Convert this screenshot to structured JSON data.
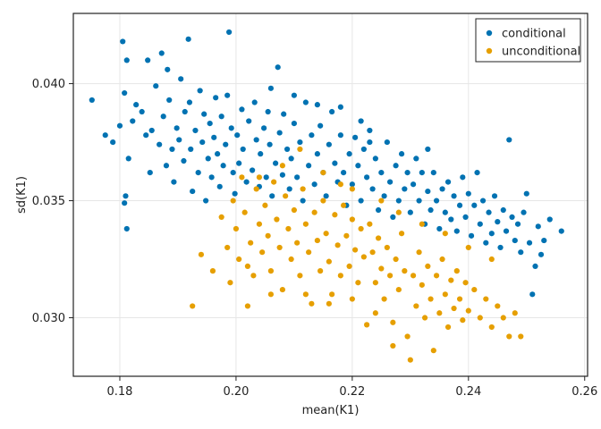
{
  "chart_data": {
    "type": "scatter",
    "xlabel": "mean(K1)",
    "ylabel": "sd(K1)",
    "xlim": [
      0.172,
      0.2605
    ],
    "ylim": [
      0.0275,
      0.043
    ],
    "x_ticks": [
      0.18,
      0.2,
      0.22,
      0.24,
      0.26
    ],
    "x_tick_labels": [
      "0.18",
      "0.20",
      "0.22",
      "0.24",
      "0.26"
    ],
    "y_ticks": [
      0.03,
      0.035,
      0.04
    ],
    "y_tick_labels": [
      "0.030",
      "0.035",
      "0.040"
    ],
    "grid": true,
    "legend_position": "top-right",
    "series": [
      {
        "name": "conditional",
        "color": "#0072b2",
        "points": [
          [
            0.1752,
            0.0393
          ],
          [
            0.1775,
            0.0378
          ],
          [
            0.1788,
            0.0375
          ],
          [
            0.1805,
            0.0418
          ],
          [
            0.1812,
            0.041
          ],
          [
            0.1808,
            0.0396
          ],
          [
            0.18,
            0.0382
          ],
          [
            0.1815,
            0.0368
          ],
          [
            0.181,
            0.0352
          ],
          [
            0.1808,
            0.0349
          ],
          [
            0.1812,
            0.0338
          ],
          [
            0.1822,
            0.0384
          ],
          [
            0.1828,
            0.0391
          ],
          [
            0.1838,
            0.0388
          ],
          [
            0.1845,
            0.0378
          ],
          [
            0.1848,
            0.041
          ],
          [
            0.1852,
            0.0362
          ],
          [
            0.1855,
            0.038
          ],
          [
            0.1862,
            0.0399
          ],
          [
            0.1868,
            0.0374
          ],
          [
            0.1872,
            0.0413
          ],
          [
            0.1875,
            0.0386
          ],
          [
            0.188,
            0.0365
          ],
          [
            0.1882,
            0.0406
          ],
          [
            0.1885,
            0.0393
          ],
          [
            0.189,
            0.0372
          ],
          [
            0.1893,
            0.0358
          ],
          [
            0.1898,
            0.0381
          ],
          [
            0.1902,
            0.0376
          ],
          [
            0.1905,
            0.0402
          ],
          [
            0.191,
            0.0367
          ],
          [
            0.1912,
            0.0388
          ],
          [
            0.1918,
            0.0419
          ],
          [
            0.192,
            0.0392
          ],
          [
            0.1922,
            0.0372
          ],
          [
            0.1925,
            0.0354
          ],
          [
            0.193,
            0.038
          ],
          [
            0.1935,
            0.0362
          ],
          [
            0.1938,
            0.0397
          ],
          [
            0.1942,
            0.0375
          ],
          [
            0.1945,
            0.0387
          ],
          [
            0.1948,
            0.035
          ],
          [
            0.1952,
            0.0368
          ],
          [
            0.1955,
            0.0383
          ],
          [
            0.1958,
            0.036
          ],
          [
            0.1962,
            0.0377
          ],
          [
            0.1965,
            0.0394
          ],
          [
            0.1968,
            0.037
          ],
          [
            0.1972,
            0.0356
          ],
          [
            0.1975,
            0.0386
          ],
          [
            0.1978,
            0.0365
          ],
          [
            0.1982,
            0.0374
          ],
          [
            0.1985,
            0.0395
          ],
          [
            0.1988,
            0.0422
          ],
          [
            0.1992,
            0.0381
          ],
          [
            0.1995,
            0.0362
          ],
          [
            0.1998,
            0.0353
          ],
          [
            0.2002,
            0.0378
          ],
          [
            0.2005,
            0.0366
          ],
          [
            0.201,
            0.0389
          ],
          [
            0.2012,
            0.0372
          ],
          [
            0.2018,
            0.0358
          ],
          [
            0.2022,
            0.0384
          ],
          [
            0.2028,
            0.0363
          ],
          [
            0.2032,
            0.0392
          ],
          [
            0.2035,
            0.0376
          ],
          [
            0.204,
            0.0356
          ],
          [
            0.2042,
            0.037
          ],
          [
            0.2048,
            0.0381
          ],
          [
            0.2052,
            0.036
          ],
          [
            0.2055,
            0.0388
          ],
          [
            0.2058,
            0.0374
          ],
          [
            0.2062,
            0.0352
          ],
          [
            0.2068,
            0.0366
          ],
          [
            0.2072,
            0.0407
          ],
          [
            0.2075,
            0.0379
          ],
          [
            0.208,
            0.0361
          ],
          [
            0.2082,
            0.0387
          ],
          [
            0.2088,
            0.0372
          ],
          [
            0.2092,
            0.0355
          ],
          [
            0.2095,
            0.0368
          ],
          [
            0.21,
            0.0383
          ],
          [
            0.2105,
            0.036
          ],
          [
            0.211,
            0.0375
          ],
          [
            0.2115,
            0.035
          ],
          [
            0.212,
            0.0392
          ],
          [
            0.2125,
            0.0365
          ],
          [
            0.213,
            0.0378
          ],
          [
            0.2135,
            0.0357
          ],
          [
            0.214,
            0.037
          ],
          [
            0.2145,
            0.0382
          ],
          [
            0.215,
            0.0362
          ],
          [
            0.2155,
            0.0352
          ],
          [
            0.216,
            0.0374
          ],
          [
            0.2165,
            0.0388
          ],
          [
            0.217,
            0.0366
          ],
          [
            0.2175,
            0.0358
          ],
          [
            0.218,
            0.0378
          ],
          [
            0.2185,
            0.0362
          ],
          [
            0.219,
            0.0348
          ],
          [
            0.2195,
            0.037
          ],
          [
            0.22,
            0.0357
          ],
          [
            0.2205,
            0.0377
          ],
          [
            0.221,
            0.0365
          ],
          [
            0.2215,
            0.035
          ],
          [
            0.222,
            0.0372
          ],
          [
            0.2225,
            0.036
          ],
          [
            0.223,
            0.038
          ],
          [
            0.2235,
            0.0355
          ],
          [
            0.224,
            0.0368
          ],
          [
            0.2245,
            0.0346
          ],
          [
            0.225,
            0.0362
          ],
          [
            0.2255,
            0.0352
          ],
          [
            0.226,
            0.0375
          ],
          [
            0.2265,
            0.0358
          ],
          [
            0.227,
            0.0343
          ],
          [
            0.2275,
            0.0365
          ],
          [
            0.228,
            0.035
          ],
          [
            0.2285,
            0.037
          ],
          [
            0.229,
            0.0355
          ],
          [
            0.2295,
            0.0362
          ],
          [
            0.23,
            0.0345
          ],
          [
            0.2305,
            0.0357
          ],
          [
            0.231,
            0.0368
          ],
          [
            0.2315,
            0.035
          ],
          [
            0.232,
            0.0362
          ],
          [
            0.2325,
            0.034
          ],
          [
            0.233,
            0.0354
          ],
          [
            0.2335,
            0.0346
          ],
          [
            0.234,
            0.0362
          ],
          [
            0.2345,
            0.035
          ],
          [
            0.235,
            0.0338
          ],
          [
            0.2355,
            0.0355
          ],
          [
            0.236,
            0.0345
          ],
          [
            0.2365,
            0.0358
          ],
          [
            0.237,
            0.0342
          ],
          [
            0.2375,
            0.0352
          ],
          [
            0.238,
            0.0337
          ],
          [
            0.2385,
            0.0348
          ],
          [
            0.239,
            0.036
          ],
          [
            0.2395,
            0.0343
          ],
          [
            0.24,
            0.0353
          ],
          [
            0.2405,
            0.0335
          ],
          [
            0.241,
            0.0348
          ],
          [
            0.2415,
            0.0362
          ],
          [
            0.242,
            0.034
          ],
          [
            0.2425,
            0.035
          ],
          [
            0.243,
            0.0332
          ],
          [
            0.2435,
            0.0345
          ],
          [
            0.244,
            0.0336
          ],
          [
            0.2445,
            0.0352
          ],
          [
            0.245,
            0.0341
          ],
          [
            0.2455,
            0.033
          ],
          [
            0.246,
            0.0346
          ],
          [
            0.2465,
            0.0337
          ],
          [
            0.247,
            0.0376
          ],
          [
            0.2475,
            0.0343
          ],
          [
            0.248,
            0.0333
          ],
          [
            0.2485,
            0.034
          ],
          [
            0.249,
            0.0328
          ],
          [
            0.2495,
            0.0345
          ],
          [
            0.25,
            0.0353
          ],
          [
            0.2505,
            0.0332
          ],
          [
            0.251,
            0.031
          ],
          [
            0.2515,
            0.0322
          ],
          [
            0.252,
            0.0339
          ],
          [
            0.2525,
            0.0327
          ],
          [
            0.253,
            0.0333
          ],
          [
            0.254,
            0.0342
          ],
          [
            0.256,
            0.0337
          ],
          [
            0.2215,
            0.0384
          ],
          [
            0.218,
            0.039
          ],
          [
            0.21,
            0.0395
          ],
          [
            0.206,
            0.0398
          ],
          [
            0.214,
            0.0391
          ],
          [
            0.223,
            0.0375
          ],
          [
            0.233,
            0.0372
          ]
        ]
      },
      {
        "name": "unconditional",
        "color": "#e69f00",
        "points": [
          [
            0.1925,
            0.0305
          ],
          [
            0.194,
            0.0327
          ],
          [
            0.196,
            0.032
          ],
          [
            0.1975,
            0.0343
          ],
          [
            0.1985,
            0.033
          ],
          [
            0.199,
            0.0315
          ],
          [
            0.1995,
            0.035
          ],
          [
            0.2,
            0.0338
          ],
          [
            0.2005,
            0.0325
          ],
          [
            0.201,
            0.036
          ],
          [
            0.2015,
            0.0345
          ],
          [
            0.202,
            0.0305
          ],
          [
            0.2025,
            0.0332
          ],
          [
            0.203,
            0.0318
          ],
          [
            0.2035,
            0.0355
          ],
          [
            0.204,
            0.034
          ],
          [
            0.2045,
            0.0328
          ],
          [
            0.205,
            0.0348
          ],
          [
            0.2055,
            0.0335
          ],
          [
            0.206,
            0.032
          ],
          [
            0.2065,
            0.0358
          ],
          [
            0.207,
            0.0342
          ],
          [
            0.2075,
            0.033
          ],
          [
            0.208,
            0.0312
          ],
          [
            0.2085,
            0.0352
          ],
          [
            0.209,
            0.0338
          ],
          [
            0.2095,
            0.0325
          ],
          [
            0.21,
            0.0346
          ],
          [
            0.2105,
            0.0332
          ],
          [
            0.211,
            0.0318
          ],
          [
            0.2115,
            0.0355
          ],
          [
            0.212,
            0.034
          ],
          [
            0.2125,
            0.0328
          ],
          [
            0.213,
            0.0306
          ],
          [
            0.2135,
            0.0345
          ],
          [
            0.214,
            0.0333
          ],
          [
            0.2145,
            0.032
          ],
          [
            0.215,
            0.035
          ],
          [
            0.2155,
            0.0336
          ],
          [
            0.216,
            0.0324
          ],
          [
            0.2165,
            0.031
          ],
          [
            0.217,
            0.0344
          ],
          [
            0.2175,
            0.0331
          ],
          [
            0.218,
            0.0318
          ],
          [
            0.2185,
            0.0348
          ],
          [
            0.219,
            0.0335
          ],
          [
            0.2195,
            0.0322
          ],
          [
            0.22,
            0.0342
          ],
          [
            0.2205,
            0.0329
          ],
          [
            0.221,
            0.0315
          ],
          [
            0.2215,
            0.0338
          ],
          [
            0.222,
            0.0326
          ],
          [
            0.2225,
            0.0297
          ],
          [
            0.223,
            0.034
          ],
          [
            0.2235,
            0.0328
          ],
          [
            0.224,
            0.0315
          ],
          [
            0.2245,
            0.0334
          ],
          [
            0.225,
            0.0321
          ],
          [
            0.2255,
            0.0308
          ],
          [
            0.226,
            0.033
          ],
          [
            0.2265,
            0.0318
          ],
          [
            0.227,
            0.0298
          ],
          [
            0.2275,
            0.0325
          ],
          [
            0.228,
            0.0312
          ],
          [
            0.2285,
            0.0336
          ],
          [
            0.229,
            0.032
          ],
          [
            0.2295,
            0.0292
          ],
          [
            0.23,
            0.0282
          ],
          [
            0.2305,
            0.0318
          ],
          [
            0.231,
            0.0305
          ],
          [
            0.2315,
            0.0328
          ],
          [
            0.232,
            0.0314
          ],
          [
            0.2325,
            0.03
          ],
          [
            0.233,
            0.0322
          ],
          [
            0.2335,
            0.0308
          ],
          [
            0.234,
            0.0286
          ],
          [
            0.2345,
            0.0318
          ],
          [
            0.235,
            0.0302
          ],
          [
            0.2355,
            0.0325
          ],
          [
            0.236,
            0.031
          ],
          [
            0.2365,
            0.0296
          ],
          [
            0.237,
            0.0316
          ],
          [
            0.2375,
            0.0304
          ],
          [
            0.238,
            0.032
          ],
          [
            0.2385,
            0.0308
          ],
          [
            0.239,
            0.0299
          ],
          [
            0.2395,
            0.0315
          ],
          [
            0.24,
            0.0303
          ],
          [
            0.241,
            0.0312
          ],
          [
            0.242,
            0.03
          ],
          [
            0.243,
            0.0308
          ],
          [
            0.244,
            0.0296
          ],
          [
            0.245,
            0.0305
          ],
          [
            0.246,
            0.03
          ],
          [
            0.247,
            0.0292
          ],
          [
            0.248,
            0.0302
          ],
          [
            0.249,
            0.0292
          ],
          [
            0.225,
            0.035
          ],
          [
            0.22,
            0.0355
          ],
          [
            0.215,
            0.0362
          ],
          [
            0.208,
            0.0365
          ],
          [
            0.204,
            0.036
          ],
          [
            0.211,
            0.0372
          ],
          [
            0.218,
            0.0357
          ],
          [
            0.228,
            0.0345
          ],
          [
            0.232,
            0.034
          ],
          [
            0.236,
            0.0336
          ],
          [
            0.24,
            0.033
          ],
          [
            0.244,
            0.0325
          ],
          [
            0.212,
            0.031
          ],
          [
            0.216,
            0.0306
          ],
          [
            0.22,
            0.0308
          ],
          [
            0.224,
            0.0302
          ],
          [
            0.206,
            0.031
          ],
          [
            0.202,
            0.0322
          ],
          [
            0.227,
            0.0288
          ]
        ]
      }
    ]
  }
}
